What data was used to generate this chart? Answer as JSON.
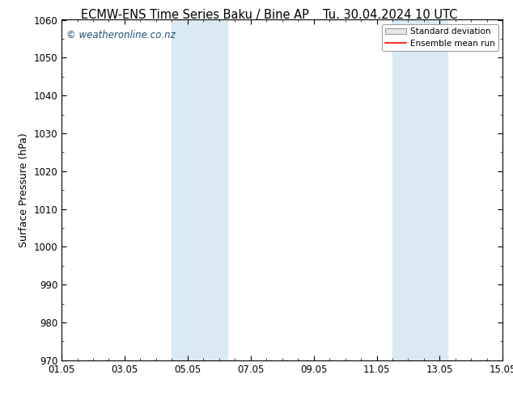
{
  "title_left": "ECMW-ENS Time Series Baku / Bine AP",
  "title_right": "Tu. 30.04.2024 10 UTC",
  "ylabel": "Surface Pressure (hPa)",
  "ylim": [
    970,
    1060
  ],
  "yticks": [
    970,
    980,
    990,
    1000,
    1010,
    1020,
    1030,
    1040,
    1050,
    1060
  ],
  "xtick_labels": [
    "01.05",
    "03.05",
    "05.05",
    "07.05",
    "09.05",
    "11.05",
    "13.05",
    "15.05"
  ],
  "xtick_positions_days": [
    0,
    2,
    4,
    6,
    8,
    10,
    12,
    14
  ],
  "shaded_bands": [
    {
      "x_start_day": 3.5,
      "x_end_day": 5.25
    },
    {
      "x_start_day": 10.5,
      "x_end_day": 12.25
    }
  ],
  "shade_color": "#daeaf5",
  "shade_alpha": 1.0,
  "watermark_text": "© weatheronline.co.nz",
  "watermark_color": "#1a5276",
  "watermark_fontsize": 8.5,
  "legend_std_color": "#cccccc",
  "legend_mean_color": "#ff0000",
  "bg_color": "#ffffff",
  "title_fontsize": 10.5,
  "axis_label_fontsize": 9,
  "tick_fontsize": 8.5
}
